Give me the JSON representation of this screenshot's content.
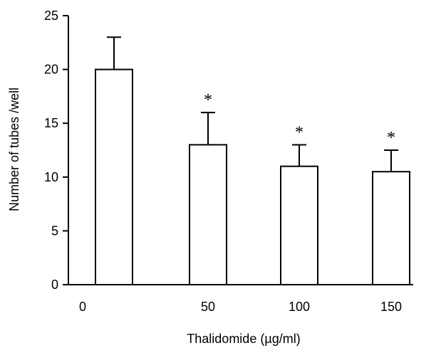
{
  "chart_data": {
    "type": "bar",
    "title": "",
    "xlabel": "Thalidomide  (µg/ml)",
    "ylabel": "Number of tubes /well",
    "categories": [
      "0",
      "50",
      "100",
      "150"
    ],
    "values": [
      20,
      13,
      11,
      10.5
    ],
    "error_upper": [
      3,
      3,
      2,
      2
    ],
    "significance": [
      "",
      "*",
      "*",
      "*"
    ],
    "ylim": [
      0,
      25
    ],
    "yticks": [
      "0",
      "5",
      "10",
      "15",
      "20",
      "25"
    ],
    "grid": false,
    "legend": "none",
    "colors": {
      "bar_fill": "#ffffff",
      "bar_stroke": "#000000",
      "axis": "#000000"
    }
  }
}
